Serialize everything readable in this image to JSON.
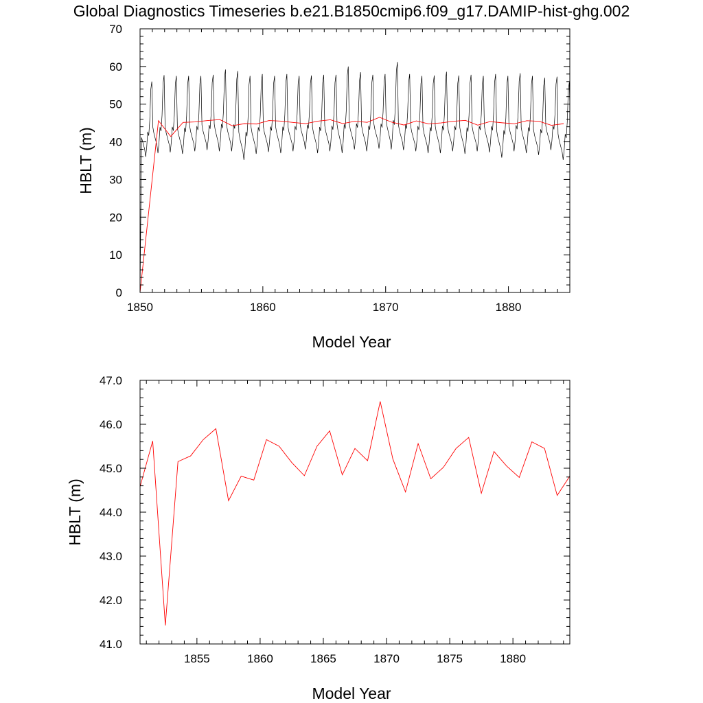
{
  "title": "Global Diagnostics Timeseries b.e21.B1850cmip6.f09_g17.DAMIP-hist-ghg.002",
  "colors": {
    "monthly": "#000000",
    "annual": "#ff0000"
  },
  "chart_data": [
    {
      "type": "line",
      "xlabel": "Model Year",
      "ylabel": "HBLT (m)",
      "xlim": [
        1850,
        1885
      ],
      "ylim": [
        0,
        70
      ],
      "x_ticks": [
        1850,
        1860,
        1870,
        1880
      ],
      "x_tick_labels": [
        "1850",
        "1860",
        "1870",
        "1880"
      ],
      "y_ticks": [
        0,
        10,
        20,
        30,
        40,
        50,
        60,
        70
      ],
      "y_tick_labels": [
        "0",
        "10",
        "20",
        "30",
        "40",
        "50",
        "60",
        "70"
      ],
      "series": [
        {
          "style": "monthly",
          "start_year": 1850,
          "months_per_year": 12,
          "first_value": 0,
          "monthly_profile": [
            44.0,
            42.5,
            41.5,
            40.5,
            39.5,
            37.5,
            40.0,
            44.0,
            43.0,
            47.0,
            55.0,
            57.0
          ],
          "annual_peaks": [
            56.0,
            57.7,
            57.5,
            57.5,
            57.5,
            57.8,
            59.2,
            58.8,
            57.5,
            58.0,
            57.5,
            58.0,
            57.5,
            57.6,
            57.8,
            57.8,
            60.0,
            58.5,
            57.8,
            58.0,
            61.2,
            58.0,
            57.5,
            57.6,
            58.6,
            57.6,
            57.8,
            57.5,
            58.0,
            57.5,
            58.2,
            57.5,
            57.0,
            57.3,
            55.8,
            57.2
          ],
          "annual_troughs": [
            36.0,
            37.0,
            37.2,
            36.8,
            37.5,
            37.8,
            37.5,
            37.5,
            35.2,
            36.8,
            37.3,
            37.0,
            37.5,
            38.0,
            37.0,
            37.5,
            37.0,
            38.0,
            37.5,
            38.2,
            38.0,
            37.8,
            37.5,
            37.0,
            37.0,
            37.5,
            36.8,
            37.5,
            37.2,
            35.8,
            37.5,
            37.0,
            36.5,
            37.8,
            35.2,
            36.5
          ]
        },
        {
          "style": "annual",
          "x": [
            1850,
            1851.5,
            1852.5,
            1853.5,
            1854.5,
            1855.5,
            1856.5,
            1857.5,
            1858.5,
            1859.5,
            1860.5,
            1861.5,
            1862.5,
            1863.5,
            1864.5,
            1865.5,
            1866.5,
            1867.5,
            1868.5,
            1869.5,
            1870.5,
            1871.5,
            1872.5,
            1873.5,
            1874.5,
            1875.5,
            1876.5,
            1877.5,
            1878.5,
            1879.5,
            1880.5,
            1881.5,
            1882.5,
            1883.5,
            1884.5
          ],
          "values": [
            0,
            45.62,
            41.42,
            45.15,
            45.28,
            45.65,
            45.9,
            44.26,
            44.82,
            44.73,
            45.65,
            45.5,
            45.13,
            44.83,
            45.5,
            45.85,
            44.85,
            45.45,
            45.17,
            46.52,
            45.21,
            44.46,
            45.56,
            44.76,
            45.02,
            45.45,
            45.7,
            44.43,
            45.38,
            45.05,
            44.79,
            45.6,
            45.45,
            44.38,
            44.82
          ]
        }
      ]
    },
    {
      "type": "line",
      "xlabel": "Model Year",
      "ylabel": "HBLT (m)",
      "xlim": [
        1850.5,
        1884.5
      ],
      "ylim": [
        41.0,
        47.0
      ],
      "x_ticks": [
        1855,
        1860,
        1865,
        1870,
        1875,
        1880
      ],
      "x_tick_labels": [
        "1855",
        "1860",
        "1865",
        "1870",
        "1875",
        "1880"
      ],
      "y_ticks": [
        41.0,
        42.0,
        43.0,
        44.0,
        45.0,
        46.0,
        47.0
      ],
      "y_tick_labels": [
        "41.0",
        "42.0",
        "43.0",
        "44.0",
        "45.0",
        "46.0",
        "47.0"
      ],
      "series": [
        {
          "style": "annual",
          "x": [
            1850.5,
            1851.5,
            1852.5,
            1853.5,
            1854.5,
            1855.5,
            1856.5,
            1857.5,
            1858.5,
            1859.5,
            1860.5,
            1861.5,
            1862.5,
            1863.5,
            1864.5,
            1865.5,
            1866.5,
            1867.5,
            1868.5,
            1869.5,
            1870.5,
            1871.5,
            1872.5,
            1873.5,
            1874.5,
            1875.5,
            1876.5,
            1877.5,
            1878.5,
            1879.5,
            1880.5,
            1881.5,
            1882.5,
            1883.5,
            1884.5
          ],
          "values": [
            44.58,
            45.62,
            41.42,
            45.15,
            45.28,
            45.65,
            45.9,
            44.26,
            44.82,
            44.73,
            45.65,
            45.5,
            45.13,
            44.83,
            45.5,
            45.85,
            44.85,
            45.45,
            45.17,
            46.52,
            45.21,
            44.46,
            45.56,
            44.76,
            45.02,
            45.45,
            45.7,
            44.43,
            45.38,
            45.05,
            44.79,
            45.6,
            45.45,
            44.38,
            44.82
          ]
        }
      ]
    }
  ]
}
